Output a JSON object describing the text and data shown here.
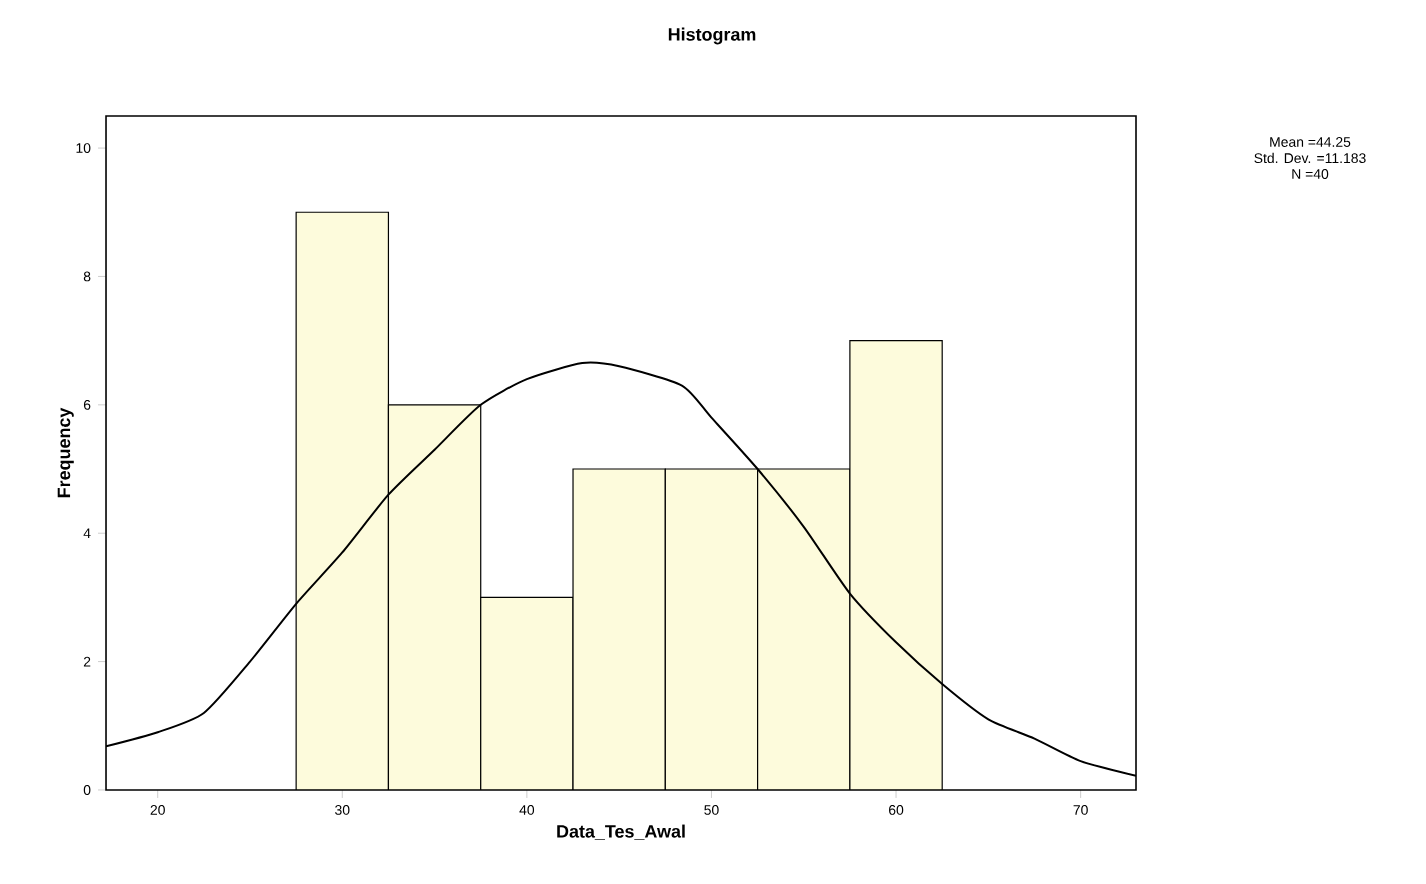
{
  "chart_data": {
    "type": "histogram",
    "title": "Histogram",
    "xlabel": "Data_Tes_Awal",
    "ylabel": "Frequency",
    "bins": [
      27.5,
      32.5,
      37.5,
      42.5,
      47.5,
      52.5,
      57.5,
      62.5
    ],
    "values": [
      9,
      6,
      3,
      5,
      5,
      5,
      7
    ],
    "color": "#fdfbdc",
    "series": [
      {
        "type": "line",
        "color": "#000000",
        "x": [
          17.2,
          20,
          22.5,
          25,
          27.5,
          30,
          32.5,
          35,
          37.5,
          40,
          43,
          45,
          48.4,
          50,
          52.5,
          55,
          57.5,
          60,
          62.5,
          65,
          67.5,
          70,
          73
        ],
        "values": [
          0.68,
          0.9,
          1.2,
          2.0,
          2.9,
          3.7,
          4.6,
          5.3,
          6.0,
          6.4,
          6.65,
          6.6,
          6.3,
          5.8,
          5.0,
          4.1,
          3.06,
          2.3,
          1.65,
          1.1,
          0.8,
          0.45,
          0.22
        ]
      }
    ],
    "xlim": [
      17.2,
      73
    ],
    "ylim": [
      0,
      10.5
    ],
    "xticks": [
      20,
      30,
      40,
      50,
      60,
      70
    ],
    "yticks": [
      0,
      2,
      4,
      6,
      8,
      10
    ],
    "annotations": [
      "Mean =44.25",
      "Std. Dev. =11.183",
      "N =40"
    ]
  }
}
